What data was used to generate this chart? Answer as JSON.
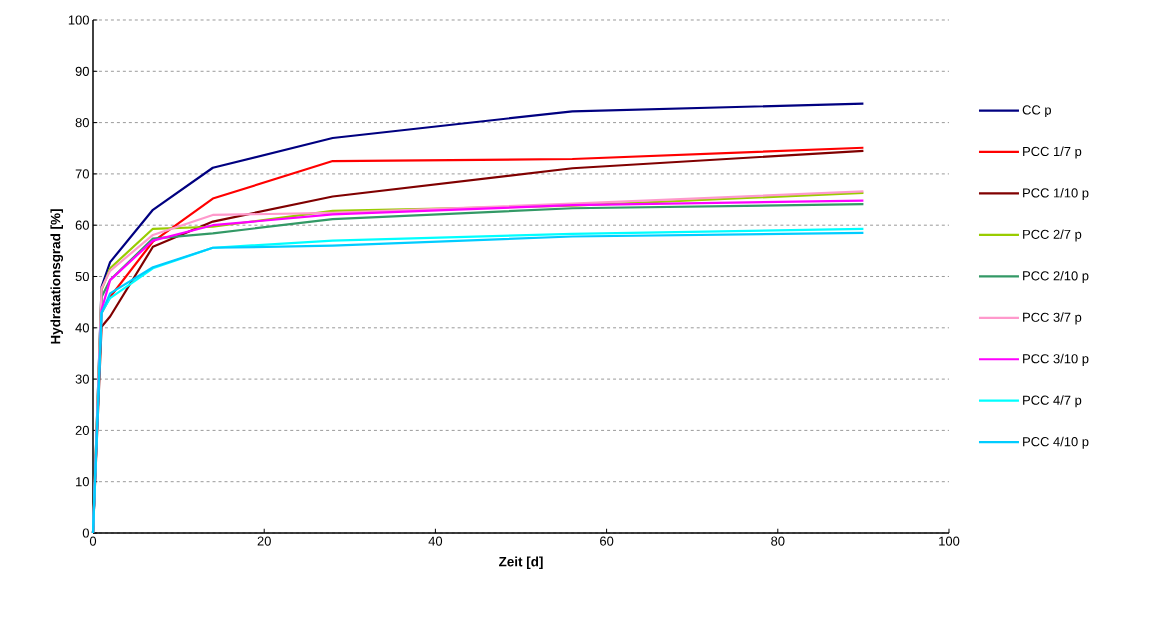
{
  "chart_data": {
    "type": "line",
    "xlabel": "Zeit [d]",
    "ylabel": "Hydratationsgrad  [%]",
    "x": [
      0,
      1,
      2,
      7,
      14,
      28,
      56,
      90
    ],
    "xlim": [
      0,
      100
    ],
    "xticks": [
      0,
      20,
      40,
      60,
      80,
      100
    ],
    "ylim": [
      0,
      100
    ],
    "yticks": [
      0,
      10,
      20,
      30,
      40,
      50,
      60,
      70,
      80,
      90,
      100
    ],
    "grid": "y",
    "legend": "right",
    "marker": "none",
    "line_style": "solid",
    "series": [
      {
        "name": "CC p",
        "color": "#000080",
        "values": [
          0,
          48,
          52.8,
          63,
          71.2,
          77,
          82.2,
          83.7
        ]
      },
      {
        "name": "PCC 1/7  p",
        "color": "#ff0000",
        "values": [
          0,
          42.9,
          46,
          56.8,
          65.2,
          72.5,
          72.9,
          75.1
        ]
      },
      {
        "name": "PCC 1/10  p",
        "color": "#800000",
        "values": [
          0,
          40.2,
          42.2,
          55.8,
          60.7,
          65.6,
          71.1,
          74.5
        ]
      },
      {
        "name": "PCC 2/7  p",
        "color": "#99cc00",
        "values": [
          0,
          47.4,
          51.6,
          59.3,
          59.7,
          62.8,
          63.8,
          66.3
        ]
      },
      {
        "name": "PCC 2/10  p",
        "color": "#339966",
        "values": [
          0,
          46,
          49.3,
          57.4,
          58.4,
          61.2,
          63.3,
          64.1
        ]
      },
      {
        "name": "PCC 3/7  p",
        "color": "#ff99cc",
        "values": [
          0,
          47.7,
          51.1,
          58.1,
          62,
          62.4,
          64.2,
          66.6
        ]
      },
      {
        "name": "PCC 3/10  p",
        "color": "#ff00ff",
        "values": [
          0,
          43.5,
          49.3,
          57,
          60,
          62.1,
          63.9,
          64.8
        ]
      },
      {
        "name": "PCC 4/7  p",
        "color": "#00ffff",
        "values": [
          0,
          42.9,
          45.8,
          51.6,
          55.6,
          57,
          58.3,
          59.3
        ]
      },
      {
        "name": "PCC 4/10  p",
        "color": "#00ccff",
        "values": [
          0,
          42.9,
          46.7,
          51.8,
          55.6,
          56,
          57.8,
          58.5
        ]
      }
    ]
  }
}
